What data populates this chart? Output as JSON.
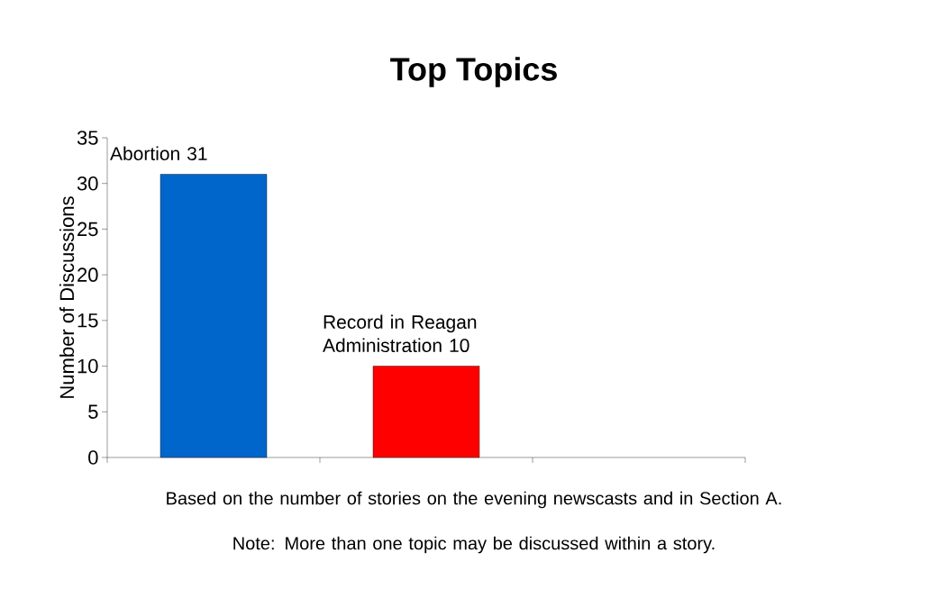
{
  "chart_data": {
    "type": "bar",
    "title": "Top Topics",
    "ylabel": "Number of Discussions",
    "categories": [
      null,
      null,
      null
    ],
    "values": [
      31,
      10,
      null
    ],
    "colors": [
      "#0066cc",
      "#ff0000",
      "#888888"
    ],
    "value_labels": [
      "Abortion 31",
      "Record in Reagan Administration 10",
      null
    ],
    "ylim": [
      0,
      35
    ],
    "yticks": [
      0,
      5,
      10,
      15,
      20,
      25,
      30,
      35
    ],
    "annotations": [
      "Based on the number of stories on the evening newscasts and in Section A.",
      "Note:  More than one topic may be discussed within a story."
    ]
  }
}
